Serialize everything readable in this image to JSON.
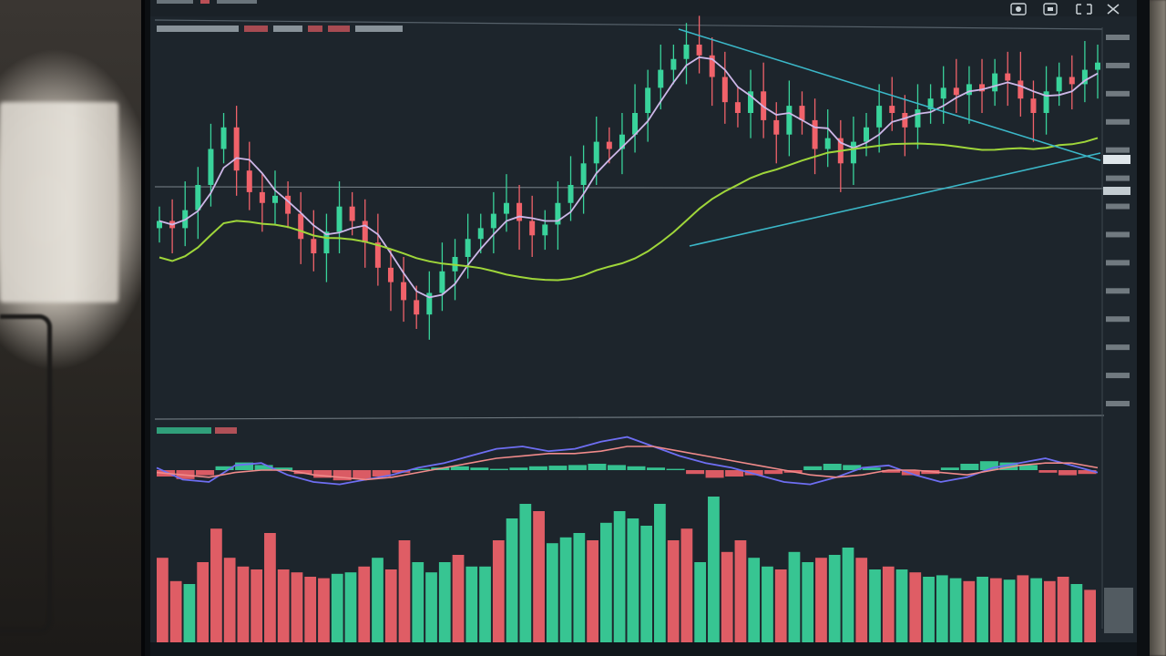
{
  "scene": {
    "description_tag": "",
    "colors": {
      "screen_bg": "#1d252c",
      "bull": "#39d39b",
      "bear": "#f0626a",
      "ma_fast": "#cdb7e8",
      "ma_slow": "#9fd63a",
      "trendline": "#3bb7c8",
      "grid": "#8a949a",
      "macd_line": "#6e6ef2",
      "signal_line": "#f08a8a"
    }
  },
  "toolbar": {
    "icons": [
      "camera-icon",
      "settings-icon",
      "fullscreen-icon",
      "close-icon"
    ]
  },
  "main_chart": {
    "price_levels": [
      0.06,
      0.09,
      0.12,
      0.16,
      0.2,
      0.24,
      0.28,
      0.33,
      0.38,
      0.43,
      0.48,
      0.53,
      0.58,
      0.62
    ],
    "closes": [
      0.5,
      0.48,
      0.53,
      0.6,
      0.7,
      0.76,
      0.64,
      0.58,
      0.55,
      0.57,
      0.52,
      0.45,
      0.41,
      0.47,
      0.54,
      0.5,
      0.44,
      0.37,
      0.33,
      0.28,
      0.24,
      0.3,
      0.36,
      0.4,
      0.45,
      0.48,
      0.52,
      0.55,
      0.5,
      0.46,
      0.49,
      0.55,
      0.6,
      0.66,
      0.72,
      0.7,
      0.74,
      0.8,
      0.87,
      0.92,
      0.95,
      0.99,
      0.96,
      0.9,
      0.83,
      0.8,
      0.86,
      0.78,
      0.74,
      0.82,
      0.78,
      0.7,
      0.73,
      0.66,
      0.72,
      0.76,
      0.82,
      0.8,
      0.76,
      0.81,
      0.84,
      0.87,
      0.85,
      0.88,
      0.86,
      0.91,
      0.89,
      0.84,
      0.8,
      0.86,
      0.9,
      0.88,
      0.92,
      0.94
    ],
    "note_volume_pattern": ""
  },
  "indicator_panel": {
    "macd_hist": [
      -0.5,
      -0.7,
      -0.4,
      0.3,
      0.6,
      0.4,
      0.2,
      -0.3,
      -0.6,
      -0.8,
      -0.7,
      -0.5,
      -0.2,
      0.1,
      0.2,
      0.3,
      0.2,
      0.1,
      0.2,
      0.3,
      0.35,
      0.4,
      0.5,
      0.4,
      0.3,
      0.2,
      0.1,
      -0.3,
      -0.6,
      -0.5,
      -0.4,
      -0.3,
      -0.2,
      0.3,
      0.5,
      0.4,
      0.2,
      -0.2,
      -0.4,
      -0.3,
      0.2,
      0.5,
      0.7,
      0.6,
      0.4,
      -0.2,
      -0.4,
      -0.3
    ],
    "macd_line": [
      0.1,
      -0.4,
      -0.5,
      0.2,
      0.3,
      -0.2,
      -0.5,
      -0.6,
      -0.4,
      -0.2,
      0.1,
      0.3,
      0.6,
      0.9,
      1.0,
      0.8,
      0.9,
      1.2,
      1.4,
      1.0,
      0.6,
      0.3,
      0.1,
      -0.2,
      -0.5,
      -0.6,
      -0.3,
      0.1,
      0.2,
      -0.2,
      -0.5,
      -0.3,
      0.1,
      0.3,
      0.5,
      0.2,
      -0.1
    ],
    "signal_line": [
      -0.1,
      -0.2,
      -0.3,
      -0.1,
      0.0,
      0.0,
      -0.2,
      -0.3,
      -0.4,
      -0.3,
      -0.1,
      0.1,
      0.3,
      0.5,
      0.6,
      0.7,
      0.7,
      0.8,
      1.0,
      1.0,
      0.8,
      0.6,
      0.4,
      0.2,
      0.0,
      -0.2,
      -0.3,
      -0.2,
      0.0,
      0.0,
      -0.1,
      -0.2,
      0.0,
      0.2,
      0.3,
      0.3,
      0.1
    ]
  },
  "volume_panel": {
    "bars": [
      {
        "v": 0.58,
        "up": false
      },
      {
        "v": 0.42,
        "up": false
      },
      {
        "v": 0.4,
        "up": true
      },
      {
        "v": 0.55,
        "up": false
      },
      {
        "v": 0.78,
        "up": false
      },
      {
        "v": 0.58,
        "up": false
      },
      {
        "v": 0.52,
        "up": false
      },
      {
        "v": 0.5,
        "up": false
      },
      {
        "v": 0.75,
        "up": false
      },
      {
        "v": 0.5,
        "up": false
      },
      {
        "v": 0.48,
        "up": false
      },
      {
        "v": 0.45,
        "up": false
      },
      {
        "v": 0.44,
        "up": false
      },
      {
        "v": 0.47,
        "up": true
      },
      {
        "v": 0.48,
        "up": true
      },
      {
        "v": 0.52,
        "up": false
      },
      {
        "v": 0.58,
        "up": true
      },
      {
        "v": 0.5,
        "up": false
      },
      {
        "v": 0.7,
        "up": false
      },
      {
        "v": 0.55,
        "up": true
      },
      {
        "v": 0.48,
        "up": true
      },
      {
        "v": 0.55,
        "up": true
      },
      {
        "v": 0.6,
        "up": false
      },
      {
        "v": 0.52,
        "up": true
      },
      {
        "v": 0.52,
        "up": true
      },
      {
        "v": 0.7,
        "up": false
      },
      {
        "v": 0.85,
        "up": true
      },
      {
        "v": 0.95,
        "up": true
      },
      {
        "v": 0.9,
        "up": false
      },
      {
        "v": 0.68,
        "up": true
      },
      {
        "v": 0.72,
        "up": true
      },
      {
        "v": 0.75,
        "up": true
      },
      {
        "v": 0.7,
        "up": false
      },
      {
        "v": 0.82,
        "up": true
      },
      {
        "v": 0.9,
        "up": true
      },
      {
        "v": 0.85,
        "up": true
      },
      {
        "v": 0.8,
        "up": true
      },
      {
        "v": 0.95,
        "up": true
      },
      {
        "v": 0.7,
        "up": false
      },
      {
        "v": 0.78,
        "up": false
      },
      {
        "v": 0.55,
        "up": true
      },
      {
        "v": 1.0,
        "up": true
      },
      {
        "v": 0.62,
        "up": false
      },
      {
        "v": 0.7,
        "up": false
      },
      {
        "v": 0.58,
        "up": true
      },
      {
        "v": 0.52,
        "up": true
      },
      {
        "v": 0.5,
        "up": false
      },
      {
        "v": 0.62,
        "up": true
      },
      {
        "v": 0.55,
        "up": true
      },
      {
        "v": 0.58,
        "up": false
      },
      {
        "v": 0.6,
        "up": true
      },
      {
        "v": 0.65,
        "up": true
      },
      {
        "v": 0.58,
        "up": false
      },
      {
        "v": 0.5,
        "up": true
      },
      {
        "v": 0.52,
        "up": false
      },
      {
        "v": 0.5,
        "up": true
      },
      {
        "v": 0.48,
        "up": false
      },
      {
        "v": 0.45,
        "up": true
      },
      {
        "v": 0.46,
        "up": true
      },
      {
        "v": 0.44,
        "up": true
      },
      {
        "v": 0.42,
        "up": false
      },
      {
        "v": 0.45,
        "up": true
      },
      {
        "v": 0.44,
        "up": false
      },
      {
        "v": 0.43,
        "up": true
      },
      {
        "v": 0.46,
        "up": false
      },
      {
        "v": 0.44,
        "up": true
      },
      {
        "v": 0.42,
        "up": false
      },
      {
        "v": 0.45,
        "up": false
      },
      {
        "v": 0.4,
        "up": true
      },
      {
        "v": 0.36,
        "up": false
      }
    ]
  }
}
